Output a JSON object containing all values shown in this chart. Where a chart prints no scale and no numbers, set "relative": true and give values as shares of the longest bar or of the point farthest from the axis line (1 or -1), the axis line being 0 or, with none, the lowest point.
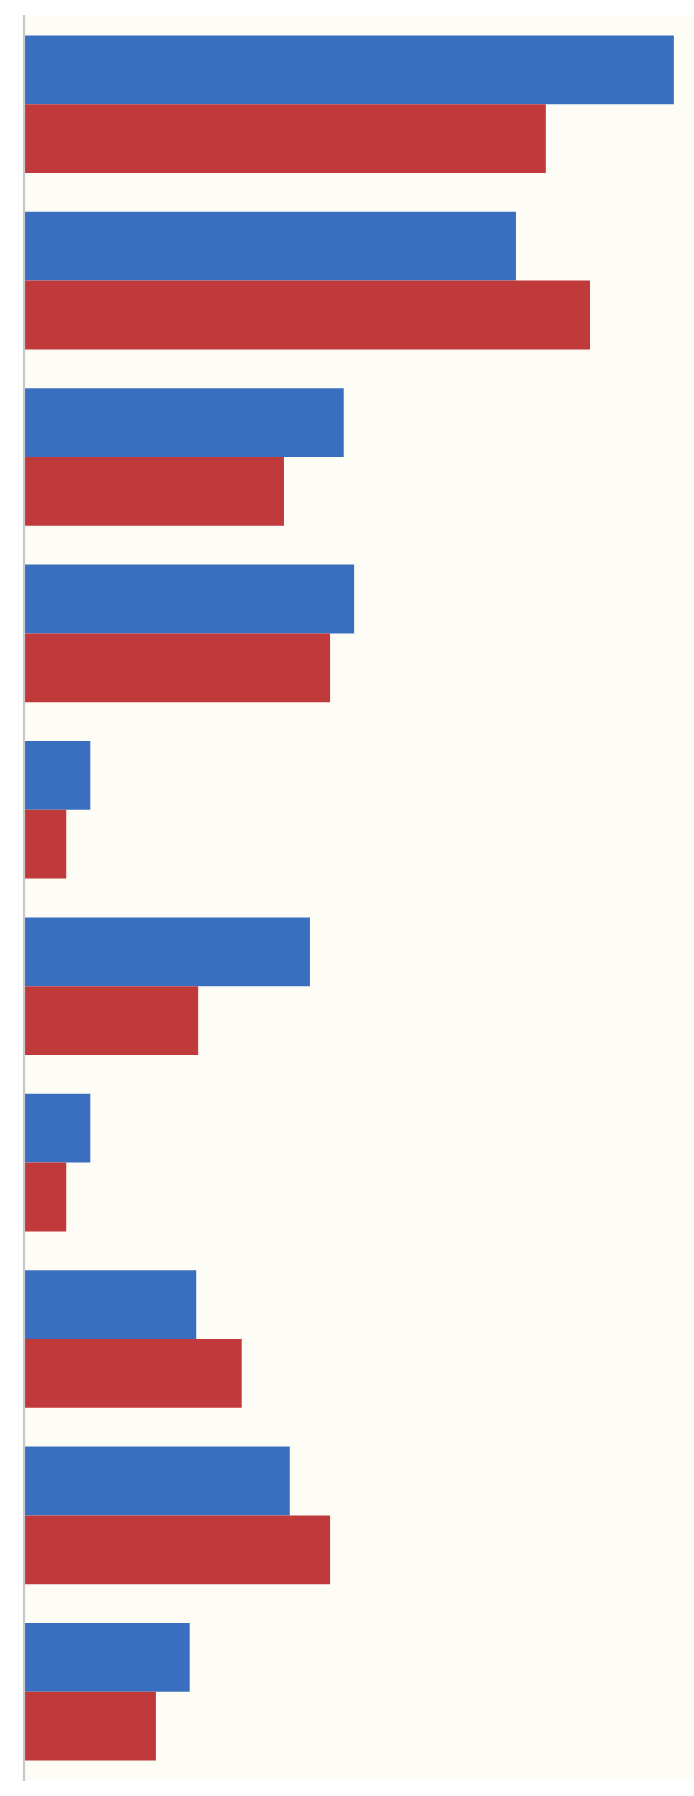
{
  "chart_data": {
    "type": "bar",
    "orientation": "horizontal",
    "relative": true,
    "categories": [
      null,
      null,
      null,
      null,
      null,
      null,
      null,
      null,
      null,
      null
    ],
    "series": [
      {
        "color": "#3a6fc0",
        "values": [
          1.0,
          0.757,
          0.492,
          0.508,
          0.102,
          0.44,
          0.102,
          0.265,
          0.409,
          0.255
        ]
      },
      {
        "color": "#c0393b",
        "values": [
          0.803,
          0.871,
          0.4,
          0.471,
          0.065,
          0.268,
          0.065,
          0.335,
          0.471,
          0.203
        ]
      }
    ]
  }
}
